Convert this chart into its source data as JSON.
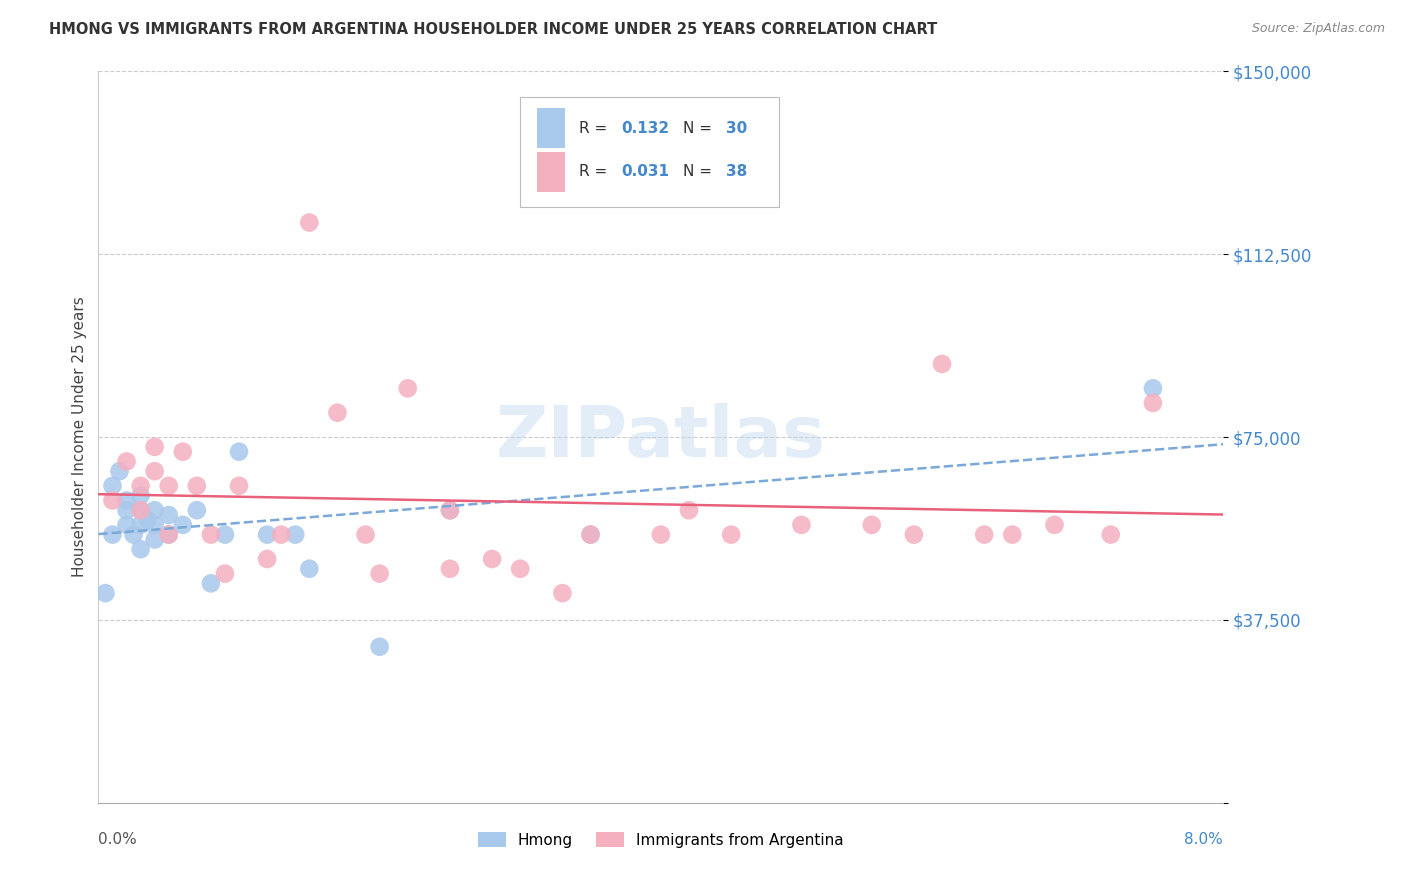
{
  "title": "HMONG VS IMMIGRANTS FROM ARGENTINA HOUSEHOLDER INCOME UNDER 25 YEARS CORRELATION CHART",
  "source": "Source: ZipAtlas.com",
  "ylabel": "Householder Income Under 25 years",
  "xlim": [
    0.0,
    0.08
  ],
  "ylim": [
    0,
    150000
  ],
  "yticks": [
    0,
    37500,
    75000,
    112500,
    150000
  ],
  "ytick_labels": [
    "",
    "$37,500",
    "$75,000",
    "$112,500",
    "$150,000"
  ],
  "background_color": "#ffffff",
  "watermark": "ZIPatlas",
  "legend_r_hmong": "0.132",
  "legend_n_hmong": "30",
  "legend_r_arg": "0.031",
  "legend_n_arg": "38",
  "hmong_color": "#a8c8ec",
  "arg_color": "#f5b0c0",
  "hmong_line_color": "#7aa8d8",
  "arg_line_color": "#e8607a",
  "hmong_x": [
    0.0005,
    0.001,
    0.001,
    0.0015,
    0.002,
    0.002,
    0.002,
    0.0025,
    0.003,
    0.003,
    0.003,
    0.003,
    0.0035,
    0.004,
    0.004,
    0.004,
    0.005,
    0.005,
    0.006,
    0.007,
    0.008,
    0.009,
    0.01,
    0.012,
    0.014,
    0.015,
    0.02,
    0.025,
    0.035,
    0.075
  ],
  "hmong_y": [
    43000,
    55000,
    65000,
    68000,
    57000,
    60000,
    62000,
    55000,
    52000,
    57000,
    60000,
    63000,
    58000,
    54000,
    57000,
    60000,
    55000,
    59000,
    57000,
    60000,
    45000,
    55000,
    72000,
    55000,
    55000,
    48000,
    32000,
    60000,
    55000,
    85000
  ],
  "arg_x": [
    0.001,
    0.002,
    0.003,
    0.003,
    0.004,
    0.004,
    0.005,
    0.005,
    0.006,
    0.007,
    0.008,
    0.009,
    0.01,
    0.012,
    0.013,
    0.015,
    0.017,
    0.019,
    0.02,
    0.022,
    0.025,
    0.025,
    0.028,
    0.03,
    0.033,
    0.035,
    0.04,
    0.042,
    0.045,
    0.05,
    0.055,
    0.058,
    0.06,
    0.063,
    0.065,
    0.068,
    0.072,
    0.075
  ],
  "arg_y": [
    62000,
    70000,
    60000,
    65000,
    68000,
    73000,
    65000,
    55000,
    72000,
    65000,
    55000,
    47000,
    65000,
    50000,
    55000,
    119000,
    80000,
    55000,
    47000,
    85000,
    48000,
    60000,
    50000,
    48000,
    43000,
    55000,
    55000,
    60000,
    55000,
    57000,
    57000,
    55000,
    90000,
    55000,
    55000,
    57000,
    55000,
    82000
  ]
}
